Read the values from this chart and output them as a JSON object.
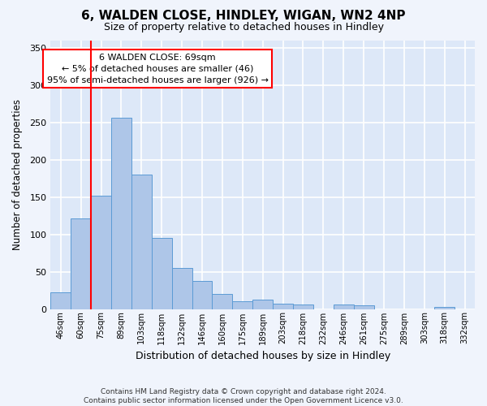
{
  "title": "6, WALDEN CLOSE, HINDLEY, WIGAN, WN2 4NP",
  "subtitle": "Size of property relative to detached houses in Hindley",
  "xlabel": "Distribution of detached houses by size in Hindley",
  "ylabel": "Number of detached properties",
  "bar_labels": [
    "46sqm",
    "60sqm",
    "75sqm",
    "89sqm",
    "103sqm",
    "118sqm",
    "132sqm",
    "146sqm",
    "160sqm",
    "175sqm",
    "189sqm",
    "203sqm",
    "218sqm",
    "232sqm",
    "246sqm",
    "261sqm",
    "275sqm",
    "289sqm",
    "303sqm",
    "318sqm",
    "332sqm"
  ],
  "bar_values": [
    22,
    122,
    152,
    257,
    180,
    95,
    55,
    38,
    20,
    10,
    12,
    7,
    6,
    0,
    6,
    5,
    0,
    0,
    0,
    3,
    0
  ],
  "bar_color": "#aec6e8",
  "bar_edge_color": "#5b9bd5",
  "background_color": "#dde8f8",
  "grid_color": "#ffffff",
  "red_line_x": 1.5,
  "annotation_title": "6 WALDEN CLOSE: 69sqm",
  "annotation_line1": "← 5% of detached houses are smaller (46)",
  "annotation_line2": "95% of semi-detached houses are larger (926) →",
  "footer1": "Contains HM Land Registry data © Crown copyright and database right 2024.",
  "footer2": "Contains public sector information licensed under the Open Government Licence v3.0.",
  "ylim": [
    0,
    360
  ],
  "yticks": [
    0,
    50,
    100,
    150,
    200,
    250,
    300,
    350
  ]
}
